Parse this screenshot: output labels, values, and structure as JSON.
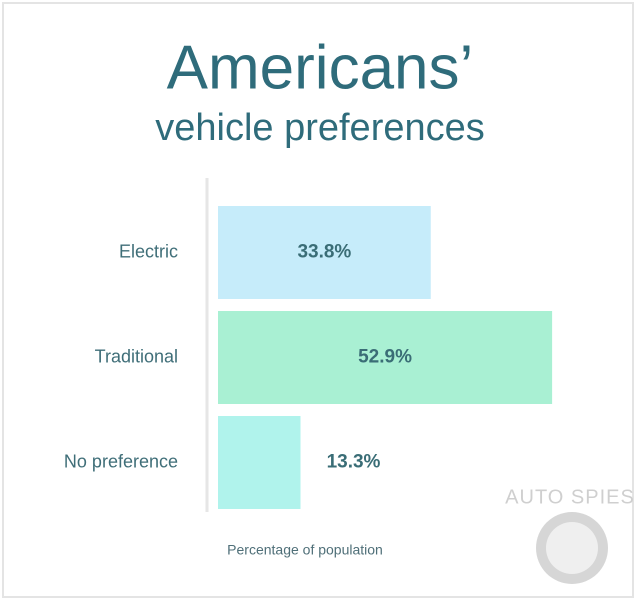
{
  "chart_data": {
    "type": "hbar",
    "title": "Americans’",
    "subtitle": "vehicle preferences",
    "categories": [
      "Electric",
      "Traditional",
      "No preference"
    ],
    "values": [
      33.8,
      52.9,
      13.3
    ],
    "value_labels": [
      "33.8%",
      "52.9%",
      "13.3%"
    ],
    "colors": [
      "#c6ecfa",
      "#a9f0d3",
      "#b0f3ec"
    ],
    "xlim": [
      0,
      65
    ],
    "x_label": "Percentage of population",
    "watermark": "AUTO SPIES"
  }
}
